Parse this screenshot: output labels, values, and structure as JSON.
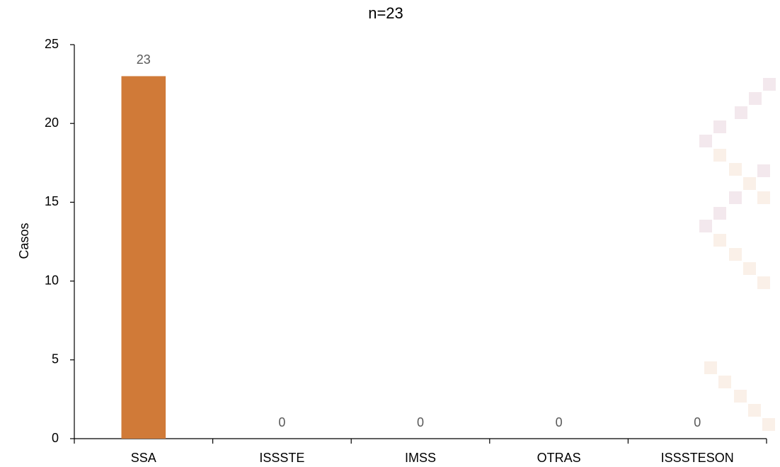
{
  "chart_data": {
    "type": "bar",
    "title": "n=23",
    "y_label": "Casos",
    "categories": [
      "SSA",
      "ISSSTE",
      "IMSS",
      "OTRAS",
      "ISSSTESON"
    ],
    "values": [
      23,
      0,
      0,
      0,
      0
    ],
    "color": "#d07a38",
    "ylim": [
      0,
      25
    ],
    "yticks": [
      0,
      5,
      10,
      15,
      20,
      25
    ],
    "grid": false,
    "data_labels": true
  }
}
